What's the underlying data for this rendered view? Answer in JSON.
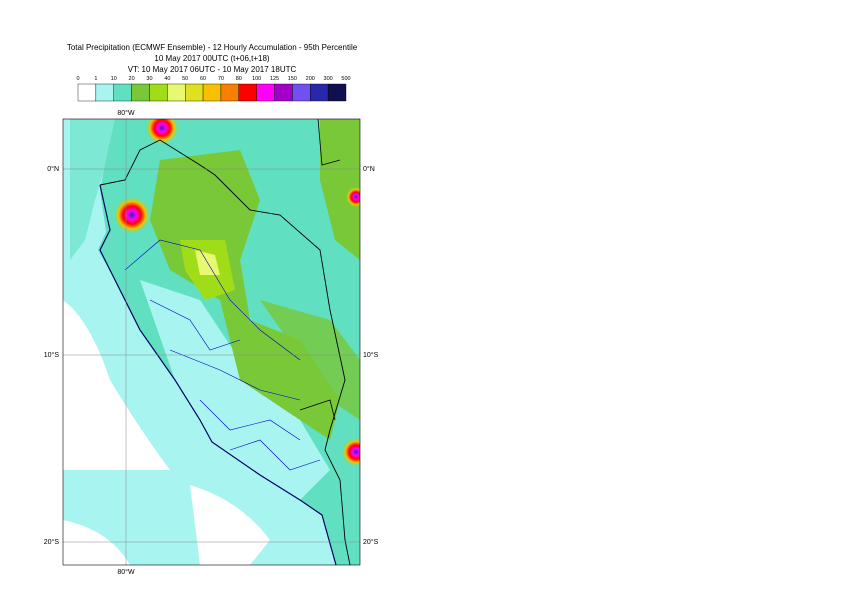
{
  "header": {
    "title_lines": [
      "Total Precipitation (ECMWF Ensemble) - 12 Hourly Accumulation - 95th Percentile",
      "10 May 2017 00UTC (t+06,t+18)",
      "VT: 10 May 2017 06UTC - 10 May 2017 18UTC"
    ]
  },
  "legend": {
    "labels": [
      "0",
      "1",
      "10",
      "20",
      "30",
      "40",
      "50",
      "60",
      "70",
      "80",
      "100",
      "125",
      "150",
      "200",
      "300",
      "500"
    ],
    "colors": [
      "#ffffff",
      "#a8f4f0",
      "#60e0c0",
      "#78c838",
      "#a0dc18",
      "#e8f870",
      "#e0e020",
      "#f8c000",
      "#f88000",
      "#ff0000",
      "#ff00ff",
      "#a000c8",
      "#7050f0",
      "#2828a8",
      "#101050"
    ]
  },
  "map": {
    "lon_labels_top": [
      "80°W"
    ],
    "lon_labels_bottom": [
      "80°W"
    ],
    "lat_labels_left": [
      "0°N",
      "10°S",
      "20°S"
    ],
    "lat_labels_right": [
      "0°N",
      "10°S",
      "20°S"
    ]
  }
}
